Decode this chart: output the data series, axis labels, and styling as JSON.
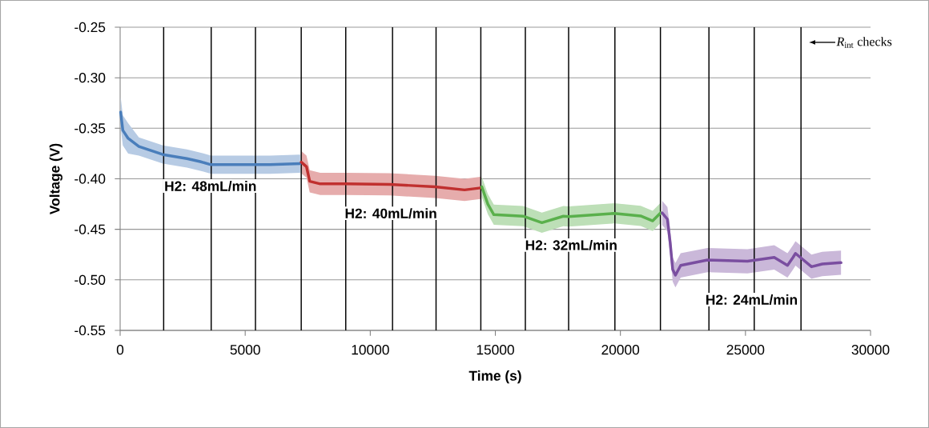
{
  "chart_data": {
    "type": "line",
    "xlabel": "Time (s)",
    "ylabel": "Voltage (V)",
    "xlim": [
      0,
      30000
    ],
    "xticks": [
      0,
      5000,
      10000,
      15000,
      20000,
      25000,
      30000
    ],
    "ylim": [
      -0.55,
      -0.25
    ],
    "yticks": [
      -0.55,
      {
        "value": -0.5,
        "label": "-0.50"
      },
      -0.45,
      {
        "value": -0.4,
        "label": "-0.40"
      },
      -0.35,
      {
        "value": -0.3,
        "label": "-0.30"
      },
      -0.25
    ],
    "grid": "y",
    "line_style": "solid",
    "marker": "none",
    "series": [
      {
        "color": "#4a7ebb",
        "x": [
          20,
          107,
          320,
          750,
          1710,
          2670,
          3200,
          3630,
          5000,
          6000,
          7200
        ],
        "values": [
          -0.334,
          -0.352,
          -0.36,
          -0.368,
          -0.376,
          -0.38,
          -0.383,
          -0.386,
          -0.386,
          -0.386,
          -0.385
        ],
        "upper": [
          -0.319,
          -0.337,
          -0.345,
          -0.359,
          -0.367,
          -0.371,
          -0.374,
          -0.377,
          -0.377,
          -0.377,
          -0.376
        ],
        "lower": [
          -0.349,
          -0.367,
          -0.375,
          -0.377,
          -0.385,
          -0.389,
          -0.392,
          -0.395,
          -0.395,
          -0.395,
          -0.394
        ]
      },
      {
        "color": "#c0302f",
        "x": [
          7240,
          7450,
          7580,
          8000,
          9000,
          10780,
          12590,
          13770,
          14410
        ],
        "values": [
          -0.3835,
          -0.388,
          -0.4025,
          -0.405,
          -0.405,
          -0.4055,
          -0.408,
          -0.411,
          -0.409
        ],
        "upper": [
          -0.3725,
          -0.377,
          -0.3915,
          -0.394,
          -0.394,
          -0.3945,
          -0.397,
          -0.4,
          -0.398
        ],
        "lower": [
          -0.3945,
          -0.399,
          -0.4135,
          -0.416,
          -0.416,
          -0.4165,
          -0.419,
          -0.422,
          -0.42
        ]
      },
      {
        "color": "#5ab04c",
        "x": [
          14460,
          14700,
          14940,
          16110,
          16860,
          17720,
          17930,
          19750,
          20810,
          21290,
          21610
        ],
        "values": [
          -0.408,
          -0.425,
          -0.4355,
          -0.437,
          -0.4434,
          -0.437,
          -0.4374,
          -0.4342,
          -0.4368,
          -0.4416,
          -0.4337
        ],
        "upper": [
          -0.398,
          -0.415,
          -0.4255,
          -0.427,
          -0.4334,
          -0.427,
          -0.4274,
          -0.4242,
          -0.4268,
          -0.4316,
          -0.4237
        ],
        "lower": [
          -0.418,
          -0.435,
          -0.4455,
          -0.447,
          -0.4534,
          -0.447,
          -0.4474,
          -0.4442,
          -0.4468,
          -0.4516,
          -0.4437
        ]
      },
      {
        "color": "#7a4ea0",
        "x": [
          21670,
          21880,
          21990,
          22090,
          22200,
          22410,
          23480,
          25080,
          26150,
          26680,
          26900,
          27000,
          27640,
          28070,
          28820
        ],
        "values": [
          -0.4337,
          -0.44,
          -0.4632,
          -0.4897,
          -0.4954,
          -0.4857,
          -0.4804,
          -0.4816,
          -0.4778,
          -0.4857,
          -0.4778,
          -0.4738,
          -0.487,
          -0.4843,
          -0.483
        ],
        "upper": [
          -0.4217,
          -0.428,
          -0.4512,
          -0.4777,
          -0.4834,
          -0.4737,
          -0.4684,
          -0.4696,
          -0.4658,
          -0.4737,
          -0.4658,
          -0.4618,
          -0.475,
          -0.4723,
          -0.471
        ],
        "lower": [
          -0.4457,
          -0.452,
          -0.4752,
          -0.5017,
          -0.5074,
          -0.4977,
          -0.4924,
          -0.4936,
          -0.4898,
          -0.4977,
          -0.4898,
          -0.4858,
          -0.499,
          -0.4963,
          -0.495
        ]
      }
    ],
    "ref_lines": [
      {
        "axis": "x",
        "value": 1740
      },
      {
        "axis": "x",
        "value": 3640
      },
      {
        "axis": "x",
        "value": 5410
      },
      {
        "axis": "x",
        "value": 7240
      },
      {
        "axis": "x",
        "value": 9020
      },
      {
        "axis": "x",
        "value": 10890
      },
      {
        "axis": "x",
        "value": 12630
      },
      {
        "axis": "x",
        "value": 14420
      },
      {
        "axis": "x",
        "value": 16200
      },
      {
        "axis": "x",
        "value": 17930
      },
      {
        "axis": "x",
        "value": 19780
      },
      {
        "axis": "x",
        "value": 21600
      },
      {
        "axis": "x",
        "value": 23540
      },
      {
        "axis": "x",
        "value": 25350
      },
      {
        "axis": "x",
        "value": 27220
      }
    ],
    "annotations": [
      "H2: 48mL/min",
      "H2: 40mL/min",
      "H2: 32mL/min",
      "H2: 24mL/min",
      "*R*$_{int}$ checks"
    ]
  }
}
